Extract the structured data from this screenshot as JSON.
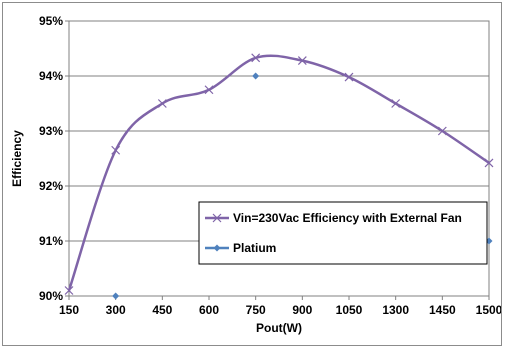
{
  "chart_data": {
    "type": "line",
    "title": "",
    "xlabel": "Pout(W)",
    "ylabel": "Efficiency",
    "categories": [
      "150",
      "300",
      "450",
      "600",
      "750",
      "900",
      "1050",
      "1300",
      "1450",
      "1500"
    ],
    "y_ticks": [
      "90%",
      "91%",
      "92%",
      "93%",
      "94%",
      "95%"
    ],
    "ylim": [
      90,
      95
    ],
    "grid": true,
    "legend_position": "bottom-right",
    "series": [
      {
        "name": "Vin=230Vac Efficiency with External Fan",
        "style": "smooth-line-x-markers",
        "color": "#7f64a8",
        "points": [
          {
            "x": 0,
            "y": 90.1
          },
          {
            "x": 1,
            "y": 92.65
          },
          {
            "x": 2,
            "y": 93.5
          },
          {
            "x": 3,
            "y": 93.75
          },
          {
            "x": 4,
            "y": 94.33
          },
          {
            "x": 5,
            "y": 94.28
          },
          {
            "x": 6,
            "y": 93.98
          },
          {
            "x": 7,
            "y": 93.5
          },
          {
            "x": 8,
            "y": 93.0
          },
          {
            "x": 9,
            "y": 92.42
          }
        ]
      },
      {
        "name": "Platium",
        "style": "diamond-markers",
        "color": "#4f81bd",
        "points": [
          {
            "x": 1,
            "y": 90.0
          },
          {
            "x": 4,
            "y": 94.0
          },
          {
            "x": 9,
            "y": 91.0
          }
        ]
      }
    ]
  }
}
